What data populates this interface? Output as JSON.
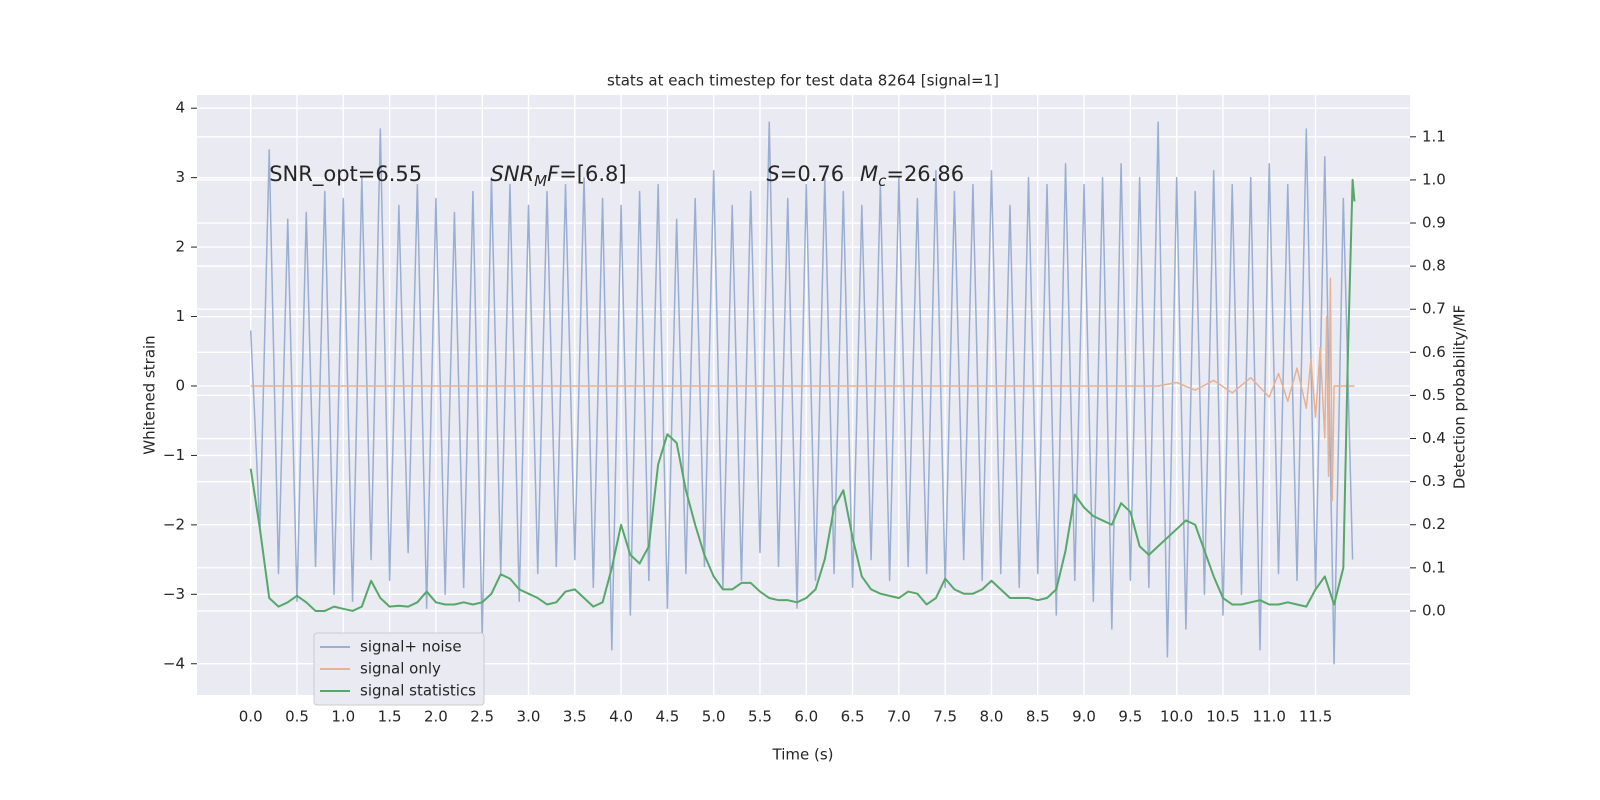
{
  "chart_data": {
    "type": "line",
    "title": "stats at each timestep for test data 8264 [signal=1]",
    "x_label": "Time (s)",
    "y_label": "Whitened strain",
    "y2_label": "Detection probability/MF",
    "grid": true,
    "legend": "lower left",
    "xlim": [
      -0.58,
      12.52
    ],
    "ylim": [
      -4.45,
      4.19
    ],
    "y2lim": [
      -0.195,
      1.197
    ],
    "xticks": [
      {
        "value": 0,
        "label": "0.0"
      },
      {
        "value": 0.5,
        "label": "0.5"
      },
      {
        "value": 1,
        "label": "1.0"
      },
      {
        "value": 1.5,
        "label": "1.5"
      },
      {
        "value": 2,
        "label": "2.0"
      },
      {
        "value": 2.5,
        "label": "2.5"
      },
      {
        "value": 3,
        "label": "3.0"
      },
      {
        "value": 3.5,
        "label": "3.5"
      },
      {
        "value": 4,
        "label": "4.0"
      },
      {
        "value": 4.5,
        "label": "4.5"
      },
      {
        "value": 5,
        "label": "5.0"
      },
      {
        "value": 5.5,
        "label": "5.5"
      },
      {
        "value": 6,
        "label": "6.0"
      },
      {
        "value": 6.5,
        "label": "6.5"
      },
      {
        "value": 7,
        "label": "7.0"
      },
      {
        "value": 7.5,
        "label": "7.5"
      },
      {
        "value": 8,
        "label": "8.0"
      },
      {
        "value": 8.5,
        "label": "8.5"
      },
      {
        "value": 9,
        "label": "9.0"
      },
      {
        "value": 9.5,
        "label": "9.5"
      },
      {
        "value": 10,
        "label": "10.0"
      },
      {
        "value": 10.5,
        "label": "10.5"
      },
      {
        "value": 11,
        "label": "11.0"
      },
      {
        "value": 11.5,
        "label": "11.5"
      }
    ],
    "yticks": [
      {
        "value": -4,
        "label": "−4"
      },
      {
        "value": -3,
        "label": "−3"
      },
      {
        "value": -2,
        "label": "−2"
      },
      {
        "value": -1,
        "label": "−1"
      },
      0,
      1,
      2,
      3,
      4
    ],
    "y2ticks": [
      {
        "value": 0,
        "label": "0.0"
      },
      {
        "value": 0.1,
        "label": "0.1"
      },
      {
        "value": 0.2,
        "label": "0.2"
      },
      {
        "value": 0.3,
        "label": "0.3"
      },
      {
        "value": 0.4,
        "label": "0.4"
      },
      {
        "value": 0.5,
        "label": "0.5"
      },
      {
        "value": 0.6,
        "label": "0.6"
      },
      {
        "value": 0.7,
        "label": "0.7"
      },
      {
        "value": 0.8,
        "label": "0.8"
      },
      {
        "value": 0.9,
        "label": "0.9"
      },
      {
        "value": 1,
        "label": "1.0"
      },
      {
        "value": 1.1,
        "label": "1.1"
      }
    ],
    "annotations": [
      {
        "x": 0.2,
        "y": 3.05,
        "parts": [
          {
            "text": "SNR_opt=6.55"
          }
        ]
      },
      {
        "x": 2.59,
        "y": 3.05,
        "parts": [
          {
            "text": "SNR",
            "italic": true
          },
          {
            "text": "M",
            "italic": true,
            "sub": true
          },
          {
            "text": "F",
            "italic": true
          },
          {
            "text": "=[6.8]"
          }
        ]
      },
      {
        "x": 5.57,
        "y": 3.05,
        "parts": [
          {
            "text": "S",
            "italic": true
          },
          {
            "text": "=0.76"
          }
        ]
      },
      {
        "x": 6.58,
        "y": 3.05,
        "parts": [
          {
            "text": "M",
            "italic": true
          },
          {
            "text": "c",
            "italic": true,
            "sub": true
          },
          {
            "text": "=26.86"
          }
        ]
      }
    ],
    "series": [
      {
        "name": "signal+ noise",
        "color": "#9aaed2",
        "x": [
          0,
          0.1,
          0.2,
          0.3,
          0.4,
          0.5,
          0.6,
          0.7,
          0.8,
          0.9,
          1,
          1.1,
          1.2,
          1.3,
          1.4,
          1.5,
          1.6,
          1.7,
          1.8,
          1.9,
          2,
          2.1,
          2.2,
          2.3,
          2.4,
          2.5,
          2.6,
          2.7,
          2.8,
          2.9,
          3,
          3.1,
          3.2,
          3.3,
          3.4,
          3.5,
          3.6,
          3.7,
          3.8,
          3.9,
          4,
          4.1,
          4.2,
          4.3,
          4.4,
          4.5,
          4.6,
          4.7,
          4.8,
          4.9,
          5,
          5.1,
          5.2,
          5.3,
          5.4,
          5.5,
          5.6,
          5.7,
          5.8,
          5.9,
          6,
          6.1,
          6.2,
          6.3,
          6.4,
          6.5,
          6.6,
          6.7,
          6.8,
          6.9,
          7,
          7.1,
          7.2,
          7.3,
          7.4,
          7.5,
          7.6,
          7.7,
          7.8,
          7.9,
          8,
          8.1,
          8.2,
          8.3,
          8.4,
          8.5,
          8.6,
          8.7,
          8.8,
          8.9,
          9,
          9.1,
          9.2,
          9.3,
          9.4,
          9.5,
          9.6,
          9.7,
          9.8,
          9.9,
          10,
          10.1,
          10.2,
          10.3,
          10.4,
          10.5,
          10.6,
          10.7,
          10.8,
          10.9,
          11,
          11.1,
          11.2,
          11.3,
          11.4,
          11.5,
          11.6,
          11.7,
          11.8,
          11.9
        ],
        "values": [
          0.8,
          -2.1,
          3.4,
          -2.7,
          2.4,
          -3.1,
          2.5,
          -2.6,
          2.8,
          -3.0,
          2.7,
          -3.1,
          3.0,
          -2.5,
          3.7,
          -2.8,
          2.6,
          -2.4,
          2.9,
          -3.2,
          2.7,
          -3.0,
          2.5,
          -2.9,
          2.8,
          -3.6,
          3.0,
          -2.7,
          2.9,
          -3.1,
          2.6,
          -2.7,
          2.8,
          -2.6,
          2.9,
          -2.5,
          3.0,
          -2.9,
          2.7,
          -3.8,
          2.6,
          -3.3,
          2.8,
          -2.8,
          2.9,
          -3.2,
          2.4,
          -2.7,
          2.7,
          -2.6,
          3.1,
          -2.9,
          2.6,
          -2.8,
          2.8,
          -2.4,
          3.8,
          -2.6,
          2.7,
          -3.2,
          2.9,
          -2.8,
          3.0,
          -2.7,
          2.8,
          -2.9,
          2.6,
          -2.5,
          2.9,
          -2.8,
          3.0,
          -2.6,
          2.7,
          -2.7,
          3.1,
          -2.9,
          2.8,
          -2.5,
          2.9,
          -2.8,
          3.1,
          -2.7,
          2.6,
          -2.9,
          3.0,
          -2.7,
          2.9,
          -3.3,
          3.2,
          -2.8,
          2.9,
          -3.1,
          3.0,
          -3.5,
          3.2,
          -2.8,
          3.0,
          -2.9,
          3.8,
          -3.9,
          3.0,
          -3.5,
          2.8,
          -3.0,
          3.1,
          -3.3,
          2.9,
          -3.0,
          3.0,
          -3.8,
          3.2,
          -2.7,
          2.9,
          -2.8,
          3.7,
          -2.9,
          3.3,
          -4.0,
          2.7,
          -2.5
        ]
      },
      {
        "name": "signal only",
        "color": "#e8b193",
        "x": [
          0,
          9.8,
          10,
          10.2,
          10.4,
          10.6,
          10.8,
          11,
          11.1,
          11.2,
          11.3,
          11.4,
          11.45,
          11.5,
          11.55,
          11.6,
          11.62,
          11.64,
          11.66,
          11.68,
          11.7,
          11.92
        ],
        "values": [
          0,
          0,
          0.05,
          -0.06,
          0.08,
          -0.1,
          0.12,
          -0.16,
          0.18,
          -0.22,
          0.26,
          -0.32,
          0.38,
          -0.45,
          0.55,
          -0.75,
          1.0,
          -1.3,
          1.55,
          -1.65,
          0,
          0
        ]
      },
      {
        "name": "signal statistics",
        "color": "#55a868",
        "axis": "y2",
        "x": [
          0,
          0.1,
          0.2,
          0.3,
          0.4,
          0.5,
          0.6,
          0.7,
          0.8,
          0.9,
          1,
          1.1,
          1.2,
          1.3,
          1.4,
          1.5,
          1.6,
          1.7,
          1.8,
          1.9,
          2,
          2.1,
          2.2,
          2.3,
          2.4,
          2.5,
          2.6,
          2.7,
          2.8,
          2.9,
          3,
          3.1,
          3.2,
          3.3,
          3.4,
          3.5,
          3.6,
          3.7,
          3.8,
          3.9,
          4,
          4.1,
          4.2,
          4.3,
          4.4,
          4.5,
          4.6,
          4.7,
          4.8,
          4.9,
          5,
          5.1,
          5.2,
          5.3,
          5.4,
          5.5,
          5.6,
          5.7,
          5.8,
          5.9,
          6,
          6.1,
          6.2,
          6.3,
          6.4,
          6.5,
          6.6,
          6.7,
          6.8,
          6.9,
          7,
          7.1,
          7.2,
          7.3,
          7.4,
          7.5,
          7.6,
          7.7,
          7.8,
          7.9,
          8,
          8.1,
          8.2,
          8.3,
          8.4,
          8.5,
          8.6,
          8.7,
          8.8,
          8.9,
          9,
          9.1,
          9.2,
          9.3,
          9.4,
          9.5,
          9.6,
          9.7,
          9.8,
          9.9,
          10,
          10.1,
          10.2,
          10.3,
          10.4,
          10.5,
          10.6,
          10.7,
          10.8,
          10.9,
          11,
          11.1,
          11.2,
          11.3,
          11.4,
          11.5,
          11.6,
          11.7,
          11.8,
          11.85,
          11.9,
          11.92
        ],
        "values": [
          0.33,
          0.19,
          0.03,
          0.01,
          0.02,
          0.035,
          0.02,
          0,
          0,
          0.01,
          0.005,
          0,
          0.01,
          0.07,
          0.03,
          0.01,
          0.012,
          0.01,
          0.02,
          0.045,
          0.02,
          0.015,
          0.015,
          0.02,
          0.015,
          0.02,
          0.04,
          0.085,
          0.075,
          0.05,
          0.04,
          0.03,
          0.015,
          0.02,
          0.045,
          0.05,
          0.03,
          0.01,
          0.02,
          0.1,
          0.2,
          0.13,
          0.11,
          0.15,
          0.34,
          0.41,
          0.39,
          0.28,
          0.2,
          0.13,
          0.08,
          0.05,
          0.05,
          0.065,
          0.065,
          0.045,
          0.03,
          0.025,
          0.025,
          0.02,
          0.03,
          0.05,
          0.12,
          0.24,
          0.28,
          0.17,
          0.08,
          0.05,
          0.04,
          0.035,
          0.03,
          0.045,
          0.04,
          0.015,
          0.03,
          0.075,
          0.05,
          0.04,
          0.04,
          0.05,
          0.07,
          0.05,
          0.03,
          0.03,
          0.03,
          0.025,
          0.03,
          0.05,
          0.14,
          0.27,
          0.24,
          0.22,
          0.21,
          0.2,
          0.25,
          0.23,
          0.15,
          0.13,
          0.15,
          0.17,
          0.19,
          0.21,
          0.2,
          0.14,
          0.08,
          0.03,
          0.015,
          0.015,
          0.02,
          0.025,
          0.015,
          0.015,
          0.02,
          0.015,
          0.01,
          0.05,
          0.08,
          0.015,
          0.1,
          0.6,
          1.0,
          0.95
        ]
      }
    ]
  }
}
